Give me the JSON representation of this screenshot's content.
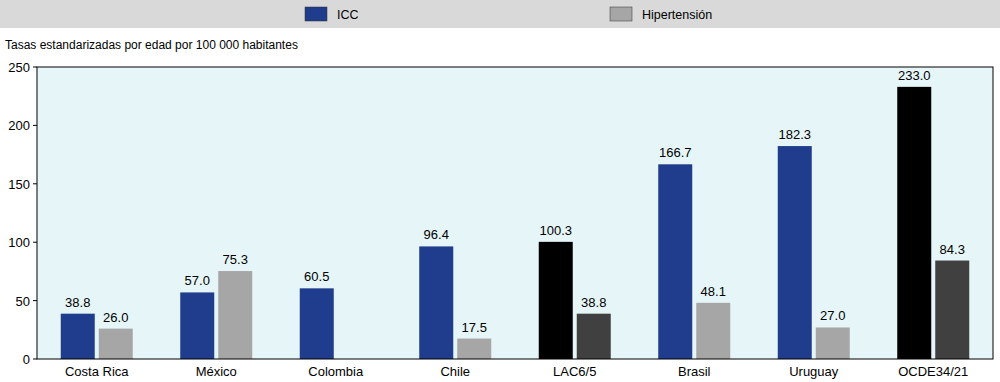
{
  "chart_data": {
    "type": "bar",
    "y_label": "Tasas estandarizadas por edad por 100 000 habitantes",
    "categories": [
      "Costa Rica",
      "México",
      "Colombia",
      "Chile",
      "LAC6/5",
      "Brasil",
      "Uruguay",
      "OCDE34/21"
    ],
    "series": [
      {
        "name": "ICC",
        "color": "#1f3d8c",
        "colors": [
          "#1f3d8c",
          "#1f3d8c",
          "#1f3d8c",
          "#1f3d8c",
          "#000000",
          "#1f3d8c",
          "#1f3d8c",
          "#000000"
        ],
        "values": [
          38.8,
          57.0,
          60.5,
          96.4,
          100.3,
          166.7,
          182.3,
          233.0
        ],
        "value_labels": [
          "38.8",
          "57.0",
          "60.5",
          "96.4",
          "100.3",
          "166.7",
          "182.3",
          "233.0"
        ]
      },
      {
        "name": "Hipertensión",
        "color": "#a6a6a6",
        "colors": [
          "#a6a6a6",
          "#a6a6a6",
          "#a6a6a6",
          "#a6a6a6",
          "#404040",
          "#a6a6a6",
          "#a6a6a6",
          "#404040"
        ],
        "values": [
          26.0,
          75.3,
          null,
          17.5,
          38.8,
          48.1,
          27.0,
          84.3
        ],
        "value_labels": [
          "26.0",
          "75.3",
          null,
          "17.5",
          "38.8",
          "48.1",
          "27.0",
          "84.3"
        ]
      }
    ],
    "ylim": [
      0,
      250
    ],
    "yticks": [
      0,
      50,
      100,
      150,
      200,
      250
    ],
    "grid": false,
    "legend": "top",
    "data_labels": true
  }
}
